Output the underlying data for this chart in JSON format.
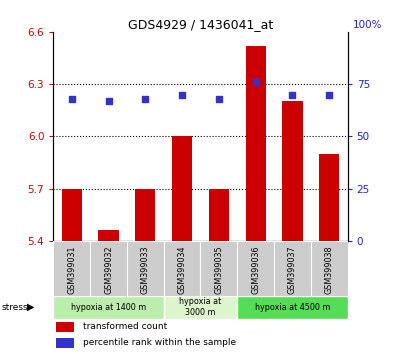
{
  "title": "GDS4929 / 1436041_at",
  "samples": [
    "GSM399031",
    "GSM399032",
    "GSM399033",
    "GSM399034",
    "GSM399035",
    "GSM399036",
    "GSM399037",
    "GSM399038"
  ],
  "bar_values": [
    5.7,
    5.46,
    5.7,
    6.0,
    5.7,
    6.52,
    6.2,
    5.9
  ],
  "dot_values": [
    68,
    67,
    68,
    70,
    68,
    76,
    70,
    70
  ],
  "bar_color": "#cc0000",
  "dot_color": "#3333cc",
  "ylim_left": [
    5.4,
    6.6
  ],
  "ylim_right": [
    0,
    100
  ],
  "yticks_left": [
    5.4,
    5.7,
    6.0,
    6.3,
    6.6
  ],
  "yticks_right": [
    0,
    25,
    50,
    75
  ],
  "grid_values": [
    5.7,
    6.0,
    6.3
  ],
  "groups": [
    {
      "label": "hypoxia at 1400 m",
      "start": 0,
      "end": 3,
      "color": "#bbeeaa"
    },
    {
      "label": "hypoxia at\n3000 m",
      "start": 3,
      "end": 5,
      "color": "#ddf5cc"
    },
    {
      "label": "hypoxia at 4500 m",
      "start": 5,
      "end": 8,
      "color": "#55dd55"
    }
  ],
  "legend_bar": "transformed count",
  "legend_dot": "percentile rank within the sample",
  "tick_color_left": "#cc0000",
  "tick_color_right": "#2222cc",
  "bg_color": "#f0f0f0"
}
